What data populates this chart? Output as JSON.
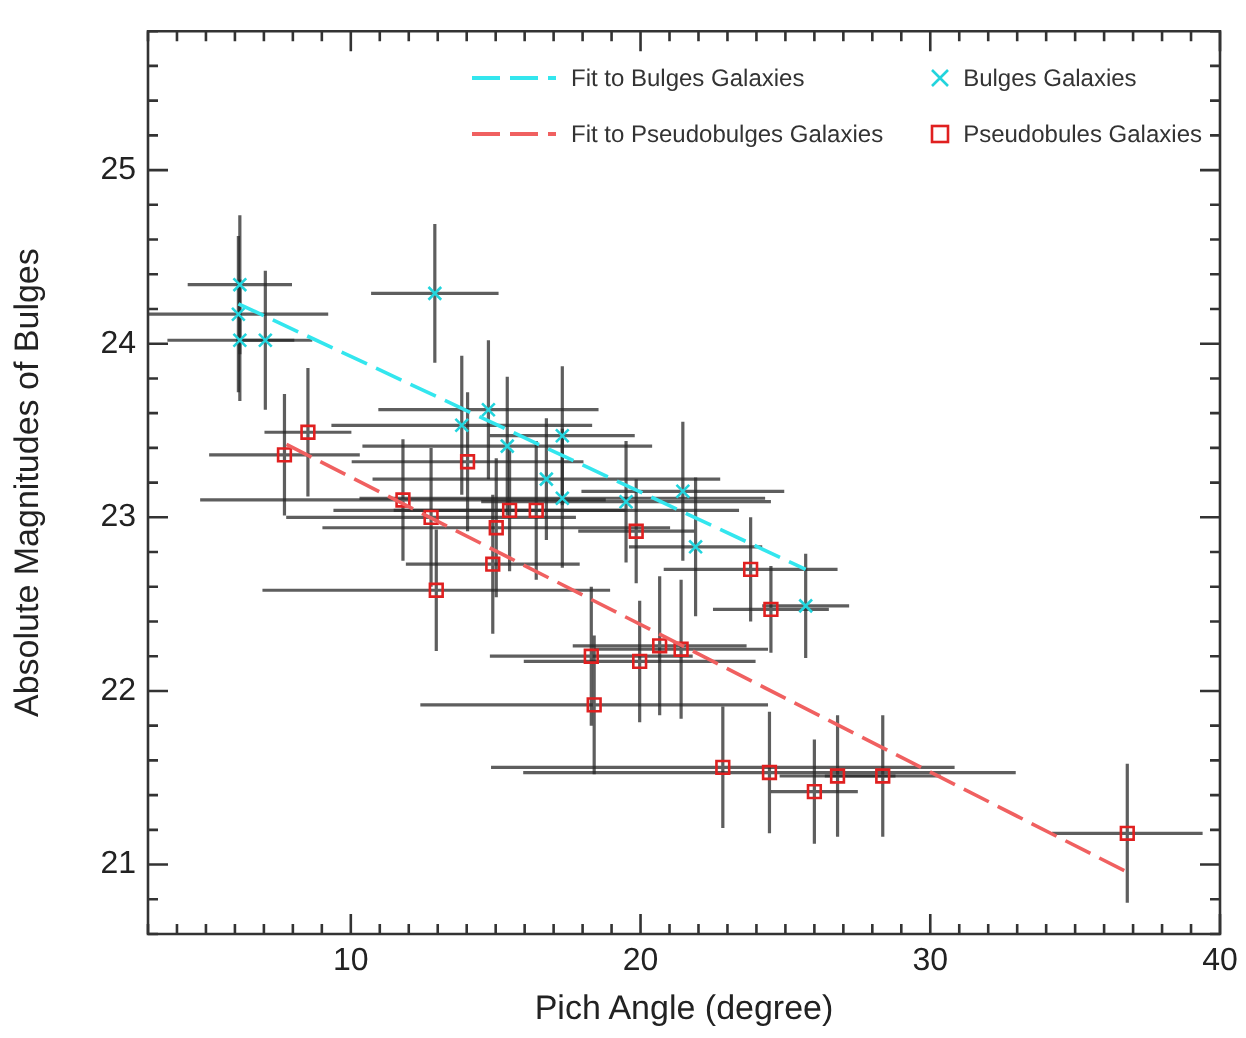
{
  "chart_data": {
    "type": "scatter",
    "xlabel": "Pich Angle (degree)",
    "ylabel": "Absolute Magnitudes of Bulges",
    "xlim": [
      3,
      40
    ],
    "ylim": [
      20.6,
      25.8
    ],
    "xticks": [
      {
        "value": 3,
        "label": null
      },
      {
        "value": 4,
        "label": null
      },
      {
        "value": 5,
        "label": null
      },
      {
        "value": 6,
        "label": null
      },
      {
        "value": 7,
        "label": null
      },
      {
        "value": 8,
        "label": null
      },
      {
        "value": 9,
        "label": null
      },
      10,
      {
        "value": 11,
        "label": null
      },
      {
        "value": 12,
        "label": null
      },
      {
        "value": 13,
        "label": null
      },
      {
        "value": 14,
        "label": null
      },
      {
        "value": 15,
        "label": null
      },
      {
        "value": 16,
        "label": null
      },
      {
        "value": 17,
        "label": null
      },
      {
        "value": 18,
        "label": null
      },
      {
        "value": 19,
        "label": null
      },
      20,
      {
        "value": 21,
        "label": null
      },
      {
        "value": 22,
        "label": null
      },
      {
        "value": 23,
        "label": null
      },
      {
        "value": 24,
        "label": null
      },
      {
        "value": 25,
        "label": null
      },
      {
        "value": 26,
        "label": null
      },
      {
        "value": 27,
        "label": null
      },
      {
        "value": 28,
        "label": null
      },
      {
        "value": 29,
        "label": null
      },
      30,
      {
        "value": 31,
        "label": null
      },
      {
        "value": 32,
        "label": null
      },
      {
        "value": 33,
        "label": null
      },
      {
        "value": 34,
        "label": null
      },
      {
        "value": 35,
        "label": null
      },
      {
        "value": 36,
        "label": null
      },
      {
        "value": 37,
        "label": null
      },
      {
        "value": 38,
        "label": null
      },
      {
        "value": 39,
        "label": null
      },
      40
    ],
    "yticks": [
      {
        "value": 20.6,
        "label": null
      },
      {
        "value": 20.8,
        "label": null
      },
      21,
      {
        "value": 21.2,
        "label": null
      },
      {
        "value": 21.4,
        "label": null
      },
      {
        "value": 21.6,
        "label": null
      },
      {
        "value": 21.8,
        "label": null
      },
      22,
      {
        "value": 22.2,
        "label": null
      },
      {
        "value": 22.4,
        "label": null
      },
      {
        "value": 22.6,
        "label": null
      },
      {
        "value": 22.8,
        "label": null
      },
      23,
      {
        "value": 23.2,
        "label": null
      },
      {
        "value": 23.4,
        "label": null
      },
      {
        "value": 23.6,
        "label": null
      },
      {
        "value": 23.8,
        "label": null
      },
      24,
      {
        "value": 24.2,
        "label": null
      },
      {
        "value": 24.4,
        "label": null
      },
      {
        "value": 24.6,
        "label": null
      },
      {
        "value": 24.8,
        "label": null
      },
      25,
      {
        "value": 25.2,
        "label": null
      },
      {
        "value": 25.4,
        "label": null
      },
      {
        "value": 25.6,
        "label": null
      },
      {
        "value": 25.8,
        "label": null
      }
    ],
    "grid": false,
    "legend": "top right",
    "series": [
      {
        "name": "Fit to Bulges Galaxies",
        "type": "line",
        "color": "#33e6ee",
        "line_style": "dashed",
        "marker": "none",
        "x": [
          6.12,
          25.7
        ],
        "values": [
          24.23,
          22.7
        ]
      },
      {
        "name": "Fit to Pseudobulges Galaxies",
        "type": "line",
        "color": "#f06060",
        "line_style": "dashed",
        "marker": "none",
        "x": [
          7.78,
          36.75
        ],
        "values": [
          23.42,
          20.96
        ]
      },
      {
        "name": "Bulges Galaxies",
        "color": "#22d4dd",
        "marker": "cross",
        "x": [
          6.17,
          6.12,
          6.17,
          7.05,
          12.9,
          13.83,
          14.75,
          15.4,
          17.3,
          16.75,
          17.3,
          19.5,
          21.46,
          21.9,
          25.7
        ],
        "values": [
          24.34,
          24.17,
          24.02,
          24.02,
          24.29,
          23.53,
          23.62,
          23.41,
          23.47,
          23.22,
          23.11,
          23.09,
          23.15,
          22.83,
          22.49
        ],
        "errors": [
          0.4,
          0.45,
          0.35,
          0.4,
          0.4,
          0.4,
          0.4,
          0.4,
          0.4,
          0.35,
          0.4,
          0.35,
          0.4,
          0.4,
          0.3
        ],
        "xerrors": [
          1.8,
          3.1,
          2.5,
          1.0,
          2.2,
          4.5,
          3.8,
          5,
          2.5,
          6,
          7,
          5,
          3.5,
          2.3,
          1.5
        ]
      },
      {
        "name": "Pseudobules Galaxies",
        "color": "#e02020",
        "marker": "square",
        "x": [
          7.71,
          8.52,
          14.03,
          11.8,
          12.77,
          15.02,
          15.48,
          16.4,
          19.85,
          14.9,
          12.95,
          23.8,
          24.5,
          18.3,
          19.97,
          20.66,
          21.4,
          18.4,
          22.84,
          24.45,
          26.0,
          26.8,
          28.36,
          36.8
        ],
        "values": [
          23.36,
          23.49,
          23.32,
          23.1,
          23.0,
          22.94,
          23.04,
          23.04,
          22.92,
          22.73,
          22.58,
          22.7,
          22.47,
          22.2,
          22.17,
          22.26,
          22.24,
          21.92,
          21.56,
          21.53,
          21.42,
          21.51,
          21.51,
          21.18
        ],
        "errors": [
          0.35,
          0.37,
          0.4,
          0.35,
          0.4,
          0.4,
          0.35,
          0.4,
          0.3,
          0.4,
          0.35,
          0.3,
          0.25,
          0.4,
          0.35,
          0.4,
          0.4,
          0.4,
          0.35,
          0.35,
          0.3,
          0.35,
          0.35,
          0.4
        ],
        "xerrors": [
          2.6,
          1.5,
          4,
          7,
          5,
          6,
          4,
          7,
          2,
          3,
          6,
          3,
          2,
          3.5,
          4,
          3,
          3,
          6,
          8,
          8.5,
          1.5,
          2,
          2,
          2.6
        ]
      }
    ]
  }
}
